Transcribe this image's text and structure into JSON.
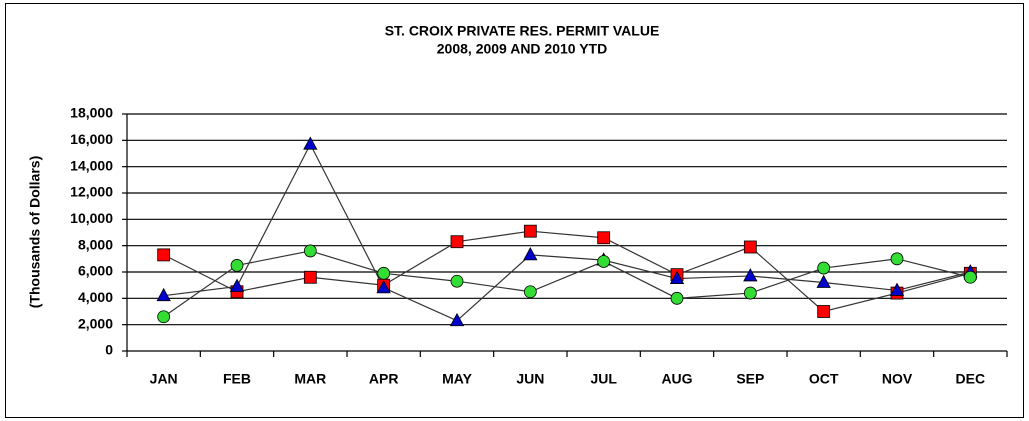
{
  "chart_data": {
    "type": "line",
    "title": "ST. CROIX PRIVATE RES. PERMIT VALUE",
    "subtitle": "2008, 2009 AND 2010 YTD",
    "y_label": "(Thousands of Dollars)",
    "categories": [
      "JAN",
      "FEB",
      "MAR",
      "APR",
      "MAY",
      "JUN",
      "JUL",
      "AUG",
      "SEP",
      "OCT",
      "NOV",
      "DEC"
    ],
    "series": [
      {
        "color": "#ff0000",
        "marker": "square",
        "values": [
          7300,
          4500,
          5600,
          5000,
          8300,
          9100,
          8600,
          5800,
          7900,
          3000,
          4400,
          5900
        ]
      },
      {
        "color": "#0000cc",
        "marker": "triangle",
        "values": [
          4200,
          4900,
          15700,
          4800,
          2300,
          7300,
          6900,
          5500,
          5700,
          5200,
          4600,
          6000
        ]
      },
      {
        "color": "#33dd33",
        "marker": "circle",
        "values": [
          2600,
          6500,
          7600,
          5900,
          5300,
          4500,
          6800,
          4000,
          4400,
          6300,
          7000,
          5600
        ]
      }
    ],
    "ylim": [
      0,
      18000
    ],
    "yticks": [
      0,
      {
        "value": 2000,
        "label": "2,000"
      },
      {
        "value": 4000,
        "label": "4,000"
      },
      {
        "value": 6000,
        "label": "6,000"
      },
      {
        "value": 8000,
        "label": "8,000"
      },
      {
        "value": 10000,
        "label": "10,000"
      },
      {
        "value": 12000,
        "label": "12,000"
      },
      {
        "value": 14000,
        "label": "14,000"
      },
      {
        "value": 16000,
        "label": "16,000"
      },
      {
        "value": 18000,
        "label": "18,000"
      }
    ],
    "grid": true
  }
}
